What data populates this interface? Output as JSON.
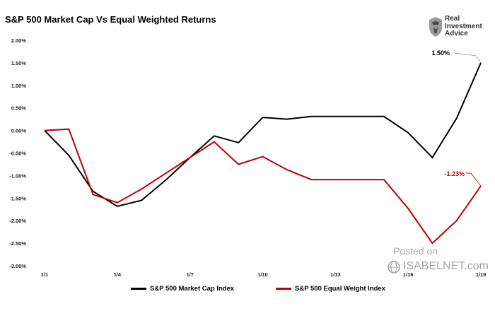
{
  "header": {
    "title": "S&P 500 Market Cap Vs Equal Weighted Returns"
  },
  "brand": {
    "line1": "Real",
    "line2": "Investment",
    "line3": "Advice"
  },
  "watermark": {
    "line1": "Posted on",
    "line2": "ISABELNET.com"
  },
  "chart_data": {
    "type": "line",
    "title": "S&P 500 Market Cap Vs Equal Weighted Returns",
    "xlabel": "",
    "ylabel": "",
    "ylim": [
      -3.0,
      2.0
    ],
    "y_ticks": [
      2.0,
      1.5,
      1.0,
      0.5,
      0.0,
      -0.5,
      -1.0,
      -1.5,
      -2.0,
      -2.5,
      -3.0
    ],
    "y_tick_labels": [
      "2.00%",
      "1.50%",
      "1.00%",
      "0.50%",
      "0.00%",
      "-0.50%",
      "-1.00%",
      "-1.50%",
      "-2.00%",
      "-2.50%",
      "-3.00%"
    ],
    "x": [
      1,
      2,
      3,
      4,
      5,
      6,
      7,
      8,
      9,
      10,
      11,
      12,
      13,
      14,
      15,
      16,
      17,
      18,
      19
    ],
    "xlim": [
      1,
      19
    ],
    "x_tick_values": [
      1,
      4,
      7,
      10,
      13,
      16,
      19
    ],
    "x_tick_labels": [
      "1/1",
      "1/4",
      "1/7",
      "1/10",
      "1/13",
      "1/16",
      "1/19"
    ],
    "grid": false,
    "legend_position": "bottom",
    "series": [
      {
        "name": "S&P 500 Market Cap Index",
        "color": "#000000",
        "values": [
          0.0,
          -0.55,
          -1.35,
          -1.68,
          -1.55,
          -1.1,
          -0.6,
          -0.12,
          -0.27,
          0.29,
          0.25,
          0.31,
          0.31,
          0.31,
          0.31,
          -0.05,
          -0.6,
          0.27,
          1.5
        ],
        "end_label": "1.50%"
      },
      {
        "name": "S&P 500 Equal Weight Index",
        "color": "#c00000",
        "values": [
          0.0,
          0.03,
          -1.42,
          -1.6,
          -1.3,
          -0.95,
          -0.6,
          -0.25,
          -0.75,
          -0.58,
          -0.87,
          -1.09,
          -1.09,
          -1.09,
          -1.09,
          -1.73,
          -2.5,
          -2.0,
          -1.23
        ],
        "end_label": "-1.23%"
      }
    ]
  }
}
